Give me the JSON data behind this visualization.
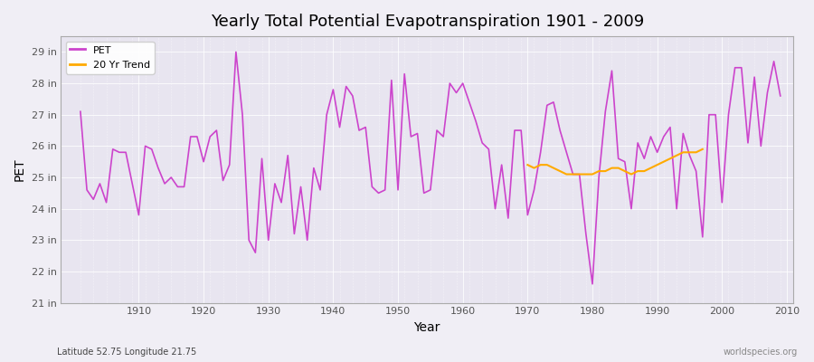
{
  "title": "Yearly Total Potential Evapotranspiration 1901 - 2009",
  "xlabel": "Year",
  "ylabel": "PET",
  "subtitle": "Latitude 52.75 Longitude 21.75",
  "watermark": "worldspecies.org",
  "pet_color": "#cc44cc",
  "trend_color": "#ffaa00",
  "bg_color": "#f0eef5",
  "plot_bg": "#e8e5f0",
  "years": [
    1901,
    1902,
    1903,
    1904,
    1905,
    1906,
    1907,
    1908,
    1909,
    1910,
    1911,
    1912,
    1913,
    1914,
    1915,
    1916,
    1917,
    1918,
    1919,
    1920,
    1921,
    1922,
    1923,
    1924,
    1925,
    1926,
    1927,
    1928,
    1929,
    1930,
    1931,
    1932,
    1933,
    1934,
    1935,
    1936,
    1937,
    1938,
    1939,
    1940,
    1941,
    1942,
    1943,
    1944,
    1945,
    1946,
    1947,
    1948,
    1949,
    1950,
    1951,
    1952,
    1953,
    1954,
    1955,
    1956,
    1957,
    1958,
    1959,
    1960,
    1961,
    1962,
    1963,
    1964,
    1965,
    1966,
    1967,
    1968,
    1969,
    1970,
    1971,
    1972,
    1973,
    1974,
    1975,
    1976,
    1977,
    1978,
    1979,
    1980,
    1981,
    1982,
    1983,
    1984,
    1985,
    1986,
    1987,
    1988,
    1989,
    1990,
    1991,
    1992,
    1993,
    1994,
    1995,
    1996,
    1997,
    1998,
    1999,
    2000,
    2001,
    2002,
    2003,
    2004,
    2005,
    2006,
    2007,
    2008,
    2009
  ],
  "pet_values": [
    27.1,
    24.6,
    24.3,
    24.8,
    24.2,
    25.9,
    25.8,
    25.8,
    24.8,
    23.8,
    26.0,
    25.9,
    25.3,
    24.8,
    25.0,
    24.7,
    24.7,
    26.3,
    26.3,
    25.5,
    26.3,
    26.5,
    24.9,
    25.4,
    29.0,
    27.0,
    23.0,
    22.6,
    25.6,
    23.0,
    24.8,
    24.2,
    25.7,
    23.2,
    24.7,
    23.0,
    25.3,
    24.6,
    27.0,
    27.8,
    26.6,
    27.9,
    27.6,
    26.5,
    26.6,
    24.7,
    24.5,
    24.6,
    28.1,
    24.6,
    28.3,
    26.3,
    26.4,
    24.5,
    24.6,
    26.5,
    26.3,
    28.0,
    27.7,
    28.0,
    27.4,
    26.8,
    26.1,
    25.9,
    24.0,
    25.4,
    23.7,
    26.5,
    26.5,
    23.8,
    24.6,
    25.8,
    27.3,
    27.4,
    26.5,
    25.8,
    25.1,
    25.1,
    23.2,
    21.6,
    25.0,
    27.1,
    28.4,
    25.6,
    25.5,
    24.0,
    26.1,
    25.6,
    26.3,
    25.8,
    26.3,
    26.6,
    24.0,
    26.4,
    25.7,
    25.2,
    23.1,
    27.0,
    27.0,
    24.2,
    27.0,
    28.5,
    28.5,
    26.1,
    28.2,
    26.0,
    27.7,
    28.7,
    27.6
  ],
  "trend_years": [
    1970,
    1971,
    1972,
    1973,
    1974,
    1975,
    1976,
    1977,
    1978,
    1979,
    1980,
    1981,
    1982,
    1983,
    1984,
    1985,
    1986,
    1987,
    1988,
    1989,
    1990,
    1991,
    1992,
    1993,
    1994,
    1995,
    1996,
    1997
  ],
  "trend_values": [
    25.4,
    25.3,
    25.4,
    25.4,
    25.3,
    25.2,
    25.1,
    25.1,
    25.1,
    25.1,
    25.1,
    25.2,
    25.2,
    25.3,
    25.3,
    25.2,
    25.1,
    25.2,
    25.2,
    25.3,
    25.4,
    25.5,
    25.6,
    25.7,
    25.8,
    25.8,
    25.8,
    25.9
  ],
  "ylim": [
    21.0,
    29.5
  ],
  "yticks": [
    21,
    22,
    23,
    24,
    25,
    26,
    27,
    28,
    29
  ],
  "xlim": [
    1898,
    2011
  ]
}
